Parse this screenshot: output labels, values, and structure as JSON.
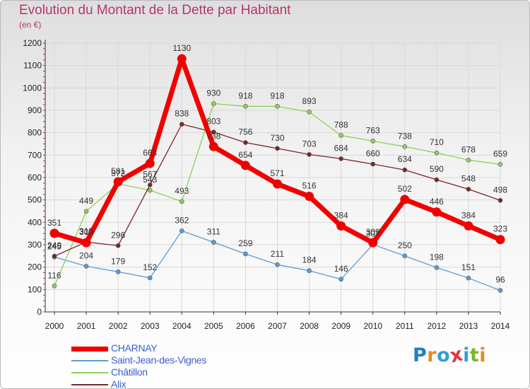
{
  "title": "Evolution du Montant de la Dette par Habitant",
  "subtitle": "(en €)",
  "logo": {
    "text": "Proxiti",
    "letter_colors": [
      "#1f7fc4",
      "#e58a1f",
      "#2fa0d8",
      "#e0343f",
      "#2fa0d8",
      "#7ab62e",
      "#e58a1f"
    ]
  },
  "chart_data": {
    "type": "line",
    "x": [
      "2000",
      "2001",
      "2002",
      "2003",
      "2004",
      "2005",
      "2006",
      "2007",
      "2008",
      "2009",
      "2010",
      "2011",
      "2012",
      "2013",
      "2014"
    ],
    "ylim": [
      0,
      1200
    ],
    "yticks": [
      0,
      100,
      200,
      300,
      400,
      500,
      600,
      700,
      800,
      900,
      1000,
      1100,
      1200
    ],
    "grid": true,
    "series": [
      {
        "name": "Saint-Jean-des-Vignes",
        "color": "#5b9bd5",
        "values": [
          245,
          204,
          179,
          152,
          362,
          311,
          259,
          211,
          184,
          146,
          301,
          250,
          198,
          151,
          96
        ]
      },
      {
        "name": "Châtillon",
        "color": "#8ed05a",
        "values": [
          116,
          449,
          572,
          543,
          493,
          930,
          918,
          918,
          893,
          788,
          763,
          738,
          710,
          678,
          659
        ]
      },
      {
        "name": "Alix",
        "color": "#7a2626",
        "values": [
          249,
          312,
          296,
          567,
          838,
          803,
          756,
          730,
          703,
          684,
          660,
          634,
          590,
          548,
          498
        ]
      },
      {
        "name": "CHARNAY",
        "color": "#f00000",
        "values": [
          351,
          309,
          581,
          663,
          1130,
          738,
          654,
          571,
          516,
          384,
          309,
          502,
          446,
          384,
          323
        ]
      }
    ],
    "legend": [
      "CHARNAY",
      "Saint-Jean-des-Vignes",
      "Châtillon",
      "Alix"
    ],
    "legend_position": "bottom-left"
  }
}
